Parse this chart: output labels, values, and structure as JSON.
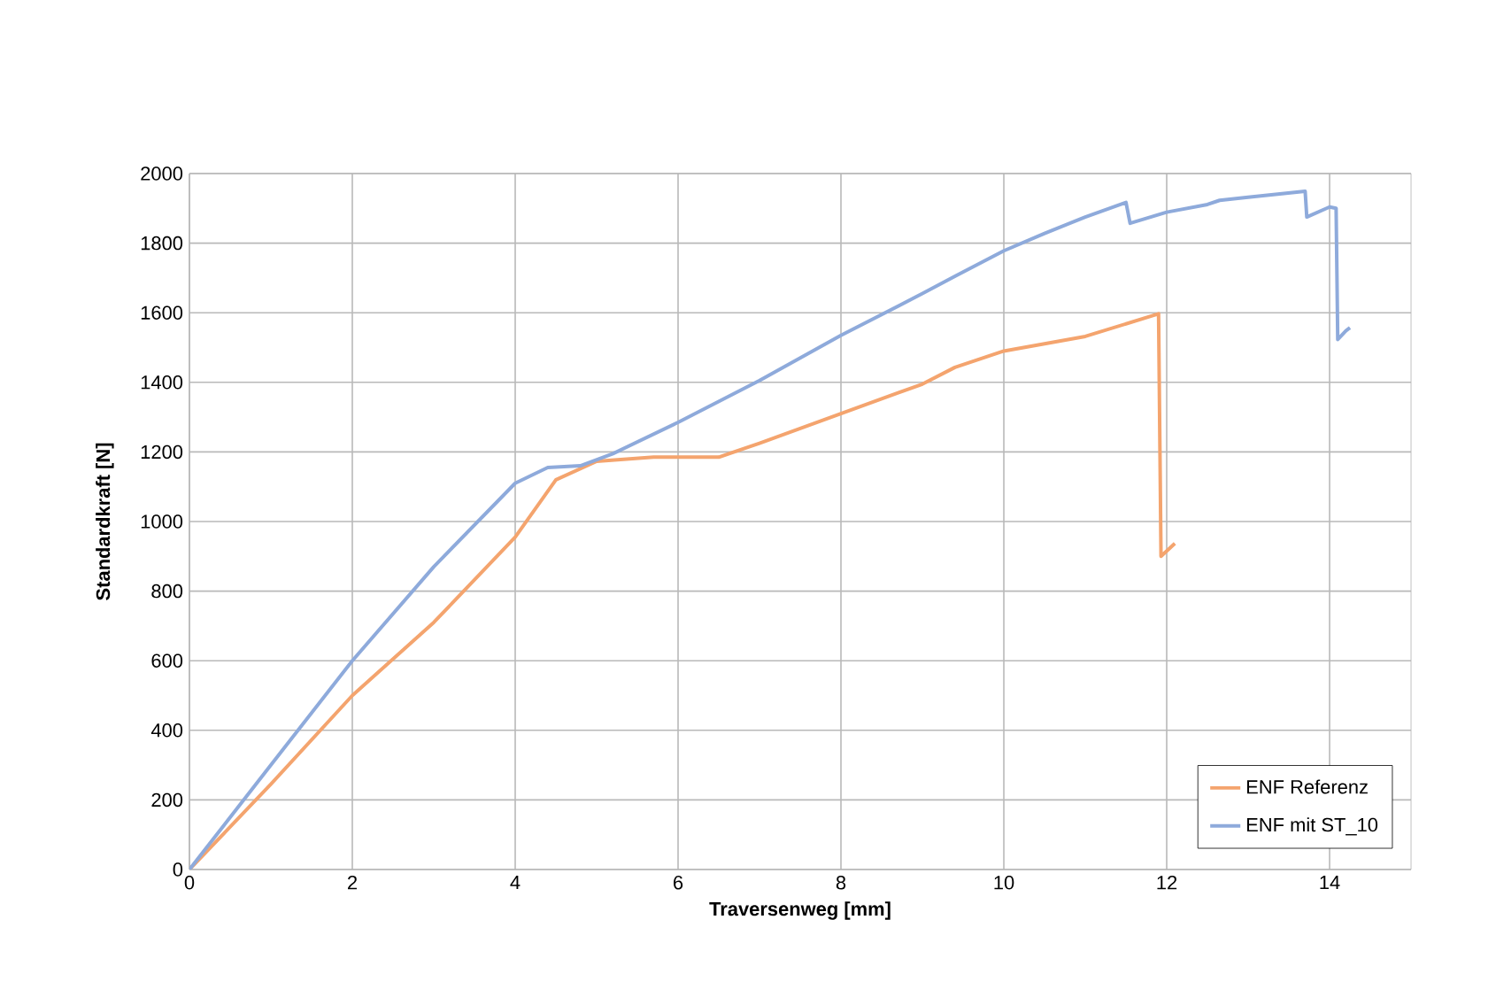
{
  "chart_data": {
    "type": "line",
    "xlabel": "Traversenweg [mm]",
    "ylabel": "Standardkraft [N]",
    "xlim": [
      0,
      15
    ],
    "ylim": [
      0,
      2000
    ],
    "xticks": [
      0,
      2,
      4,
      6,
      8,
      10,
      12,
      14
    ],
    "yticks": [
      0,
      200,
      400,
      600,
      800,
      1000,
      1200,
      1400,
      1600,
      1800,
      2000
    ],
    "grid": true,
    "legend": "bottom right",
    "marker": "none",
    "line_style": "solid",
    "series": [
      {
        "name": "ENF Referenz",
        "color": "#f4a46e",
        "x": [
          0,
          1,
          2,
          3,
          4,
          4.5,
          5,
          5.7,
          6.5,
          7,
          8,
          9,
          9.4,
          10,
          11,
          11.9,
          11.93,
          12.1
        ],
        "values": [
          0,
          245,
          500,
          710,
          955,
          1120,
          1173,
          1185,
          1185,
          1225,
          1310,
          1395,
          1443,
          1490,
          1532,
          1597,
          900,
          937
        ]
      },
      {
        "name": "ENF mit ST_10",
        "color": "#8eaadb",
        "x": [
          0,
          1,
          2,
          3,
          4,
          4.4,
          4.8,
          5.2,
          6,
          7,
          8,
          9,
          9.41,
          10,
          10.5,
          11,
          11.5,
          11.55,
          12,
          12.5,
          12.65,
          13,
          13.7,
          13.72,
          14,
          14.08,
          14.1,
          14.2,
          14.25
        ],
        "values": [
          0,
          300,
          600,
          870,
          1110,
          1155,
          1160,
          1195,
          1285,
          1405,
          1535,
          1655,
          1706,
          1778,
          1828,
          1875,
          1917,
          1857,
          1889,
          1911,
          1923,
          1932,
          1949,
          1875,
          1904,
          1900,
          1523,
          1548,
          1557
        ]
      }
    ]
  }
}
